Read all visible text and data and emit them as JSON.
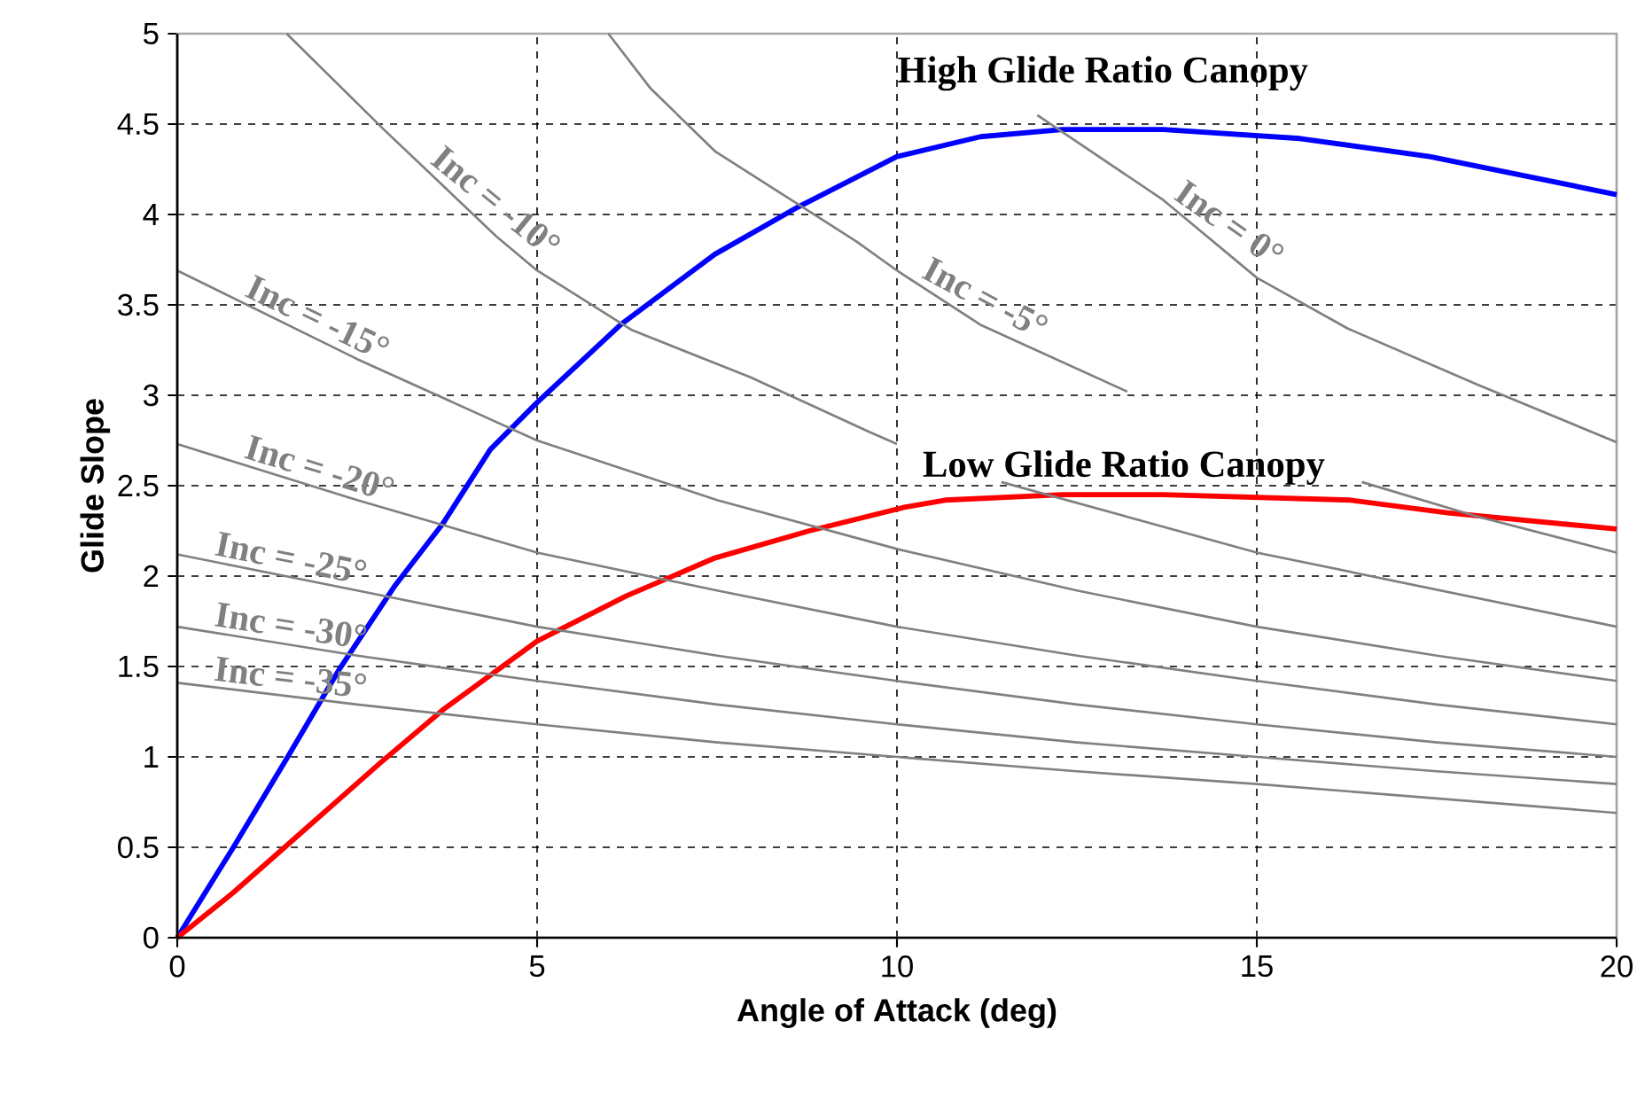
{
  "chart_data": {
    "type": "line",
    "xlabel": "Angle of Attack (deg)",
    "ylabel": "Glide Slope",
    "xlim": [
      0,
      20
    ],
    "ylim": [
      0,
      5
    ],
    "xticks": [
      0,
      5,
      10,
      15,
      20
    ],
    "yticks": [
      0,
      0.5,
      1,
      1.5,
      2,
      2.5,
      3,
      3.5,
      4,
      4.5,
      5
    ],
    "grid": true,
    "series": [
      {
        "name": "High Glide Ratio Canopy",
        "color": "#0000ff",
        "x": [
          0,
          0.78,
          1.52,
          2.26,
          3.03,
          3.69,
          4.35,
          5,
          6.16,
          7.47,
          8.62,
          10,
          11.16,
          12.3,
          13.7,
          15.6,
          17.4,
          20
        ],
        "values": [
          0,
          0.5,
          0.99,
          1.49,
          1.95,
          2.29,
          2.7,
          2.96,
          3.39,
          3.78,
          4.04,
          4.32,
          4.43,
          4.47,
          4.47,
          4.42,
          4.32,
          4.11
        ]
      },
      {
        "name": "Low Glide Ratio Canopy",
        "color": "#ff0000",
        "x": [
          0,
          0.78,
          1.52,
          2.83,
          3.69,
          5,
          6.24,
          7.47,
          8.78,
          10.1,
          10.67,
          12.3,
          13.7,
          16.3,
          17.65,
          20
        ],
        "values": [
          0,
          0.25,
          0.51,
          0.97,
          1.26,
          1.64,
          1.89,
          2.1,
          2.25,
          2.38,
          2.42,
          2.45,
          2.45,
          2.42,
          2.35,
          2.26
        ]
      },
      {
        "name": "Inc = 0°",
        "color": "#808080",
        "x": [
          11.95,
          13.7,
          15,
          16.26,
          18.06,
          20
        ],
        "values": [
          4.55,
          4.08,
          3.65,
          3.37,
          3.06,
          2.74
        ]
      },
      {
        "name": "Inc = -5°",
        "color": "#808080",
        "x": [
          5.99,
          6.57,
          7.47,
          9.44,
          10,
          11.16,
          13.2,
          15,
          16.46,
          18.06,
          20
        ],
        "values": [
          5,
          4.7,
          4.35,
          3.85,
          3.69,
          3.39,
          3.02,
          null,
          2.52,
          2.33,
          2.13
        ]
      },
      {
        "name": "Inc = -10°",
        "color": "#808080",
        "x": [
          1.52,
          2.87,
          4.43,
          5,
          6.32,
          7.96,
          9.6,
          10,
          10.7,
          11.45,
          15,
          20
        ],
        "values": [
          5,
          4.47,
          3.88,
          3.69,
          3.36,
          3.1,
          2.8,
          2.73,
          null,
          2.52,
          2.13,
          1.72
        ]
      },
      {
        "name": "Inc = -15°",
        "color": "#808080",
        "x": [
          0,
          2.5,
          5,
          7.5,
          10,
          12.5,
          15,
          17.5,
          20
        ],
        "values": [
          3.69,
          3.2,
          2.75,
          2.42,
          2.15,
          1.92,
          1.72,
          1.56,
          1.42
        ]
      },
      {
        "name": "Inc = -20°",
        "color": "#808080",
        "x": [
          0,
          2.5,
          5,
          7.5,
          10,
          12.5,
          15,
          17.5,
          20
        ],
        "values": [
          2.73,
          2.42,
          2.13,
          1.92,
          1.72,
          1.56,
          1.42,
          1.29,
          1.18
        ]
      },
      {
        "name": "Inc = -25°",
        "color": "#808080",
        "x": [
          0,
          2.5,
          5,
          7.5,
          10,
          12.5,
          15,
          17.5,
          20
        ],
        "values": [
          2.12,
          1.92,
          1.72,
          1.56,
          1.42,
          1.29,
          1.18,
          1.08,
          1
        ]
      },
      {
        "name": "Inc = -30°",
        "color": "#808080",
        "x": [
          0,
          2.5,
          5,
          7.5,
          10,
          12.5,
          15,
          17.5,
          20
        ],
        "values": [
          1.72,
          1.56,
          1.42,
          1.29,
          1.18,
          1.08,
          1,
          0.92,
          0.85
        ]
      },
      {
        "name": "Inc = -35°",
        "color": "#808080",
        "x": [
          0,
          2.5,
          5,
          7.5,
          10,
          12.5,
          15,
          17.5,
          20
        ],
        "values": [
          1.41,
          1.29,
          1.18,
          1.08,
          1,
          0.92,
          0.85,
          0.77,
          0.69
        ]
      }
    ]
  }
}
